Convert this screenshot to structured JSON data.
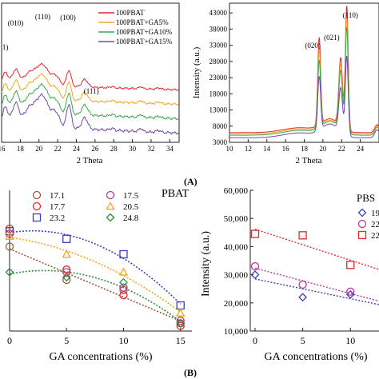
{
  "figure": {
    "label_a": "(A)",
    "label_b": "(B)"
  },
  "colors": {
    "red": "#e8262a",
    "orange": "#f0a81a",
    "green": "#3aa84a",
    "purple": "#6f4ab0",
    "brown": "#9b5b3b",
    "blue": "#3a41b6",
    "pink": "#c0379a",
    "darkgreen": "#2f8a3d",
    "axis": "#222222"
  },
  "chart_data": [
    {
      "id": "xrd-pbat",
      "type": "line",
      "xlabel": "2 Theta",
      "ylabel": "",
      "xlim": [
        16,
        35
      ],
      "xticks": [
        16,
        18,
        20,
        22,
        24,
        26,
        28,
        30,
        32,
        34
      ],
      "peak_labels": [
        {
          "text": "1)",
          "x": 16.4
        },
        {
          "text": "(010)",
          "x": 17.5
        },
        {
          "text": "(110)",
          "x": 20.4
        },
        {
          "text": "(100)",
          "x": 23.1
        },
        {
          "text": "(111)",
          "x": 25.6
        }
      ],
      "series": [
        {
          "name": "100PBAT",
          "color_key": "red",
          "offset": 3
        },
        {
          "name": "100PBAT+GA5%",
          "color_key": "orange",
          "offset": 2
        },
        {
          "name": "100PBAT+GA10%",
          "color_key": "green",
          "offset": 1
        },
        {
          "name": "100PBAT+GA15%",
          "color_key": "purple",
          "offset": 0
        }
      ],
      "legend": "top-right"
    },
    {
      "id": "xrd-pbs",
      "type": "line",
      "xlabel": "2 Theta",
      "ylabel": "Intensity (a.u.)",
      "xlim": [
        10,
        26
      ],
      "ylim": [
        3000,
        46000
      ],
      "xticks": [
        10,
        12,
        14,
        16,
        18,
        20,
        22,
        24
      ],
      "yticks": [
        3000,
        8000,
        13000,
        18000,
        23000,
        28000,
        33000,
        38000,
        43000
      ],
      "peak_labels": [
        {
          "text": "(020)",
          "x": 19.6
        },
        {
          "text": "(021)",
          "x": 21.8
        },
        {
          "text": "(110)",
          "x": 22.6
        }
      ],
      "series": [
        {
          "color_key": "red",
          "base": 6000,
          "peak110": 44500,
          "peak020": 33000
        },
        {
          "color_key": "orange",
          "base": 5600,
          "peak110": 41000,
          "peak020": 29000
        },
        {
          "color_key": "green",
          "base": 5200,
          "peak110": 38000,
          "peak020": 26000
        },
        {
          "color_key": "purple",
          "base": 4400,
          "peak110": 29000,
          "peak020": 21000
        }
      ]
    },
    {
      "id": "pbat-intensity",
      "type": "scatter",
      "title": "PBAT",
      "xlabel": "GA concentrations (%)",
      "ylabel": "",
      "xlim": [
        0,
        16
      ],
      "ylim": [
        0,
        55
      ],
      "xticks": [
        0,
        5,
        10,
        15
      ],
      "legend": "top",
      "series": [
        {
          "name": "17.1",
          "marker": "circle",
          "color_key": "brown",
          "x": [
            0,
            5,
            10,
            15
          ],
          "y": [
            33,
            20,
            16,
            3
          ]
        },
        {
          "name": "17.7",
          "marker": "circle",
          "color_key": "red",
          "x": [
            0,
            5,
            10,
            15
          ],
          "y": [
            40,
            24,
            14,
            2
          ]
        },
        {
          "name": "23.2",
          "marker": "square",
          "color_key": "blue",
          "x": [
            0,
            5,
            10,
            15
          ],
          "y": [
            39,
            36,
            30,
            10
          ]
        },
        {
          "name": "17.5",
          "marker": "circle",
          "color_key": "pink",
          "x": [
            0,
            5,
            10,
            15
          ],
          "y": [
            38,
            23,
            17,
            4
          ]
        },
        {
          "name": "20.5",
          "marker": "triangle",
          "color_key": "orange",
          "x": [
            0,
            5,
            10,
            15
          ],
          "y": [
            37,
            30,
            23,
            7
          ]
        },
        {
          "name": "24.8",
          "marker": "diamond",
          "color_key": "darkgreen",
          "x": [
            0,
            5,
            10,
            15
          ],
          "y": [
            23,
            21,
            19,
            3
          ]
        }
      ]
    },
    {
      "id": "pbs-intensity",
      "type": "scatter",
      "title": "PBS",
      "xlabel": "GA concentrations (%)",
      "ylabel": "Intensity (a.u.)",
      "xlim": [
        -0.5,
        13
      ],
      "ylim": [
        10000,
        60000
      ],
      "xticks": [
        0,
        5,
        10
      ],
      "yticks": [
        10000,
        20000,
        30000,
        40000,
        50000,
        60000
      ],
      "ytick_labels": [
        "10,000",
        "20,000",
        "30,000",
        "40,000",
        "50,000",
        "60,000"
      ],
      "legend": "top-right",
      "series": [
        {
          "name": "19",
          "marker": "diamond",
          "color_key": "blue",
          "x": [
            0,
            5,
            10
          ],
          "y": [
            30000,
            22000,
            23000
          ]
        },
        {
          "name": "22",
          "marker": "circle",
          "color_key": "pink",
          "x": [
            0,
            5,
            10
          ],
          "y": [
            33000,
            26500,
            24000
          ]
        },
        {
          "name": "22",
          "marker": "square",
          "color_key": "red",
          "x": [
            0,
            5,
            10
          ],
          "y": [
            44500,
            44000,
            33500
          ]
        }
      ]
    }
  ]
}
